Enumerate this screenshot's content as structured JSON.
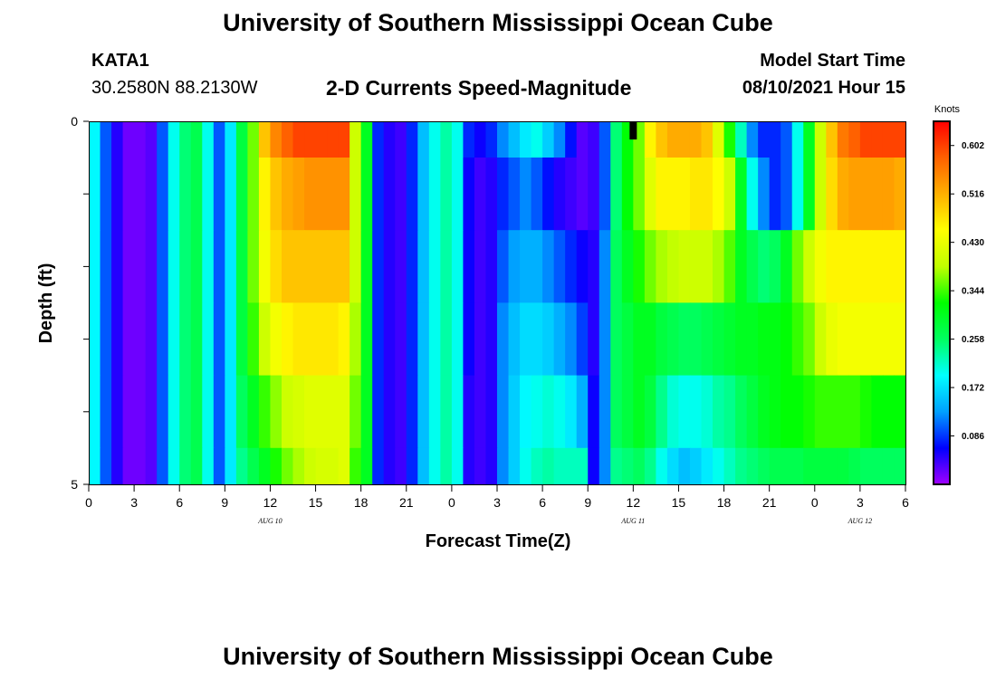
{
  "header": {
    "title": "University of Southern Mississippi Ocean Cube",
    "station_id": "KATA1",
    "coordinates": "30.2580N  88.2130W",
    "subtitle": "2-D Currents Speed-Magnitude",
    "model_label": "Model Start Time",
    "model_time": "08/10/2021 Hour 15"
  },
  "footer": {
    "title": "University of Southern Mississippi Ocean Cube"
  },
  "colors": {
    "colormap": [
      "#a000ff",
      "#0000ff",
      "#00a0ff",
      "#00ffff",
      "#00ff60",
      "#00ff00",
      "#c0ff00",
      "#ffff00",
      "#ffb000",
      "#ff6000",
      "#ff0000"
    ]
  },
  "chart_data": {
    "type": "heatmap",
    "title": "2-D Currents Speed-Magnitude",
    "xlabel": "Forecast Time(Z)",
    "ylabel": "Depth (ft)",
    "x_tick_labels": [
      "0",
      "3",
      "6",
      "9",
      "12",
      "15",
      "18",
      "21",
      "0",
      "3",
      "6",
      "9",
      "12",
      "15",
      "18",
      "21",
      "0",
      "3",
      "6"
    ],
    "date_labels": [
      {
        "text": "AUG 10",
        "hour": 12
      },
      {
        "text": "AUG 11",
        "hour": 36
      },
      {
        "text": "AUG 12",
        "hour": 51
      }
    ],
    "x_range_hours": [
      0,
      54
    ],
    "ylim": [
      0,
      5
    ],
    "y_tick_labels": [
      "0",
      "5"
    ],
    "depth_levels": 5,
    "colorbar": {
      "unit": "Knots",
      "min": 0.0,
      "max": 0.645,
      "tick_values": [
        0.086,
        0.172,
        0.258,
        0.344,
        0.43,
        0.516,
        0.602
      ],
      "tick_labels": [
        "0.086",
        "0.172",
        "0.258",
        "0.344",
        "0.430",
        "0.516",
        "0.602"
      ]
    },
    "no_data_marks": [
      {
        "hour": 36,
        "depth": 0.25
      }
    ],
    "speed_knots_by_depth": [
      [
        0.19,
        0.1,
        0.05,
        0.02,
        0.02,
        0.03,
        0.1,
        0.2,
        0.25,
        0.27,
        0.2,
        0.1,
        0.18,
        0.28,
        0.36,
        0.5,
        0.55,
        0.58,
        0.6,
        0.6,
        0.6,
        0.6,
        0.6,
        0.4,
        0.3,
        0.08,
        0.05,
        0.04,
        0.08,
        0.15,
        0.2,
        0.23,
        0.2,
        0.08,
        0.06,
        0.08,
        0.12,
        0.15,
        0.18,
        0.2,
        0.16,
        0.12,
        0.07,
        0.03,
        0.04,
        0.1,
        0.25,
        0.32,
        0.36,
        0.46,
        0.5,
        0.52,
        0.52,
        0.52,
        0.5,
        0.42,
        0.33,
        0.22,
        0.12,
        0.08,
        0.08,
        0.1,
        0.2,
        0.3,
        0.4,
        0.5,
        0.56,
        0.58,
        0.6,
        0.6,
        0.6,
        0.6
      ],
      [
        0.19,
        0.1,
        0.05,
        0.02,
        0.02,
        0.03,
        0.1,
        0.2,
        0.25,
        0.27,
        0.2,
        0.1,
        0.18,
        0.28,
        0.36,
        0.46,
        0.5,
        0.52,
        0.53,
        0.54,
        0.54,
        0.54,
        0.54,
        0.4,
        0.3,
        0.08,
        0.05,
        0.04,
        0.08,
        0.15,
        0.2,
        0.23,
        0.2,
        0.06,
        0.04,
        0.05,
        0.08,
        0.1,
        0.12,
        0.1,
        0.07,
        0.05,
        0.04,
        0.03,
        0.04,
        0.1,
        0.25,
        0.32,
        0.36,
        0.42,
        0.46,
        0.46,
        0.46,
        0.47,
        0.47,
        0.45,
        0.4,
        0.3,
        0.2,
        0.12,
        0.08,
        0.1,
        0.2,
        0.3,
        0.4,
        0.48,
        0.52,
        0.53,
        0.53,
        0.53,
        0.53,
        0.52
      ],
      [
        0.19,
        0.1,
        0.05,
        0.02,
        0.02,
        0.03,
        0.1,
        0.2,
        0.25,
        0.27,
        0.2,
        0.1,
        0.18,
        0.28,
        0.36,
        0.44,
        0.48,
        0.5,
        0.5,
        0.5,
        0.5,
        0.5,
        0.5,
        0.4,
        0.3,
        0.08,
        0.05,
        0.04,
        0.08,
        0.15,
        0.2,
        0.23,
        0.2,
        0.06,
        0.04,
        0.05,
        0.1,
        0.13,
        0.14,
        0.14,
        0.12,
        0.1,
        0.08,
        0.06,
        0.05,
        0.12,
        0.26,
        0.3,
        0.33,
        0.36,
        0.38,
        0.39,
        0.4,
        0.4,
        0.4,
        0.38,
        0.35,
        0.3,
        0.27,
        0.25,
        0.26,
        0.3,
        0.36,
        0.4,
        0.44,
        0.46,
        0.46,
        0.46,
        0.46,
        0.46,
        0.46,
        0.46
      ],
      [
        0.19,
        0.1,
        0.05,
        0.02,
        0.02,
        0.03,
        0.1,
        0.2,
        0.25,
        0.27,
        0.2,
        0.1,
        0.18,
        0.28,
        0.34,
        0.4,
        0.44,
        0.46,
        0.47,
        0.47,
        0.47,
        0.47,
        0.46,
        0.38,
        0.3,
        0.08,
        0.05,
        0.04,
        0.08,
        0.15,
        0.2,
        0.23,
        0.2,
        0.06,
        0.04,
        0.05,
        0.12,
        0.15,
        0.17,
        0.17,
        0.16,
        0.14,
        0.12,
        0.09,
        0.05,
        0.12,
        0.26,
        0.28,
        0.3,
        0.3,
        0.28,
        0.27,
        0.26,
        0.26,
        0.27,
        0.28,
        0.29,
        0.3,
        0.3,
        0.31,
        0.31,
        0.32,
        0.34,
        0.36,
        0.4,
        0.43,
        0.44,
        0.44,
        0.44,
        0.44,
        0.44,
        0.44
      ],
      [
        0.19,
        0.1,
        0.05,
        0.02,
        0.02,
        0.03,
        0.1,
        0.2,
        0.25,
        0.27,
        0.2,
        0.1,
        0.18,
        0.26,
        0.3,
        0.34,
        0.37,
        0.4,
        0.41,
        0.42,
        0.42,
        0.42,
        0.42,
        0.36,
        0.3,
        0.08,
        0.05,
        0.04,
        0.08,
        0.15,
        0.2,
        0.23,
        0.2,
        0.05,
        0.04,
        0.05,
        0.12,
        0.16,
        0.19,
        0.2,
        0.21,
        0.2,
        0.18,
        0.14,
        0.06,
        0.12,
        0.26,
        0.28,
        0.3,
        0.28,
        0.24,
        0.21,
        0.2,
        0.2,
        0.21,
        0.23,
        0.24,
        0.26,
        0.28,
        0.3,
        0.31,
        0.32,
        0.32,
        0.33,
        0.34,
        0.34,
        0.34,
        0.34,
        0.33,
        0.32,
        0.32,
        0.32
      ],
      [
        0.19,
        0.1,
        0.05,
        0.02,
        0.02,
        0.03,
        0.1,
        0.2,
        0.25,
        0.27,
        0.2,
        0.1,
        0.18,
        0.24,
        0.27,
        0.3,
        0.33,
        0.36,
        0.38,
        0.4,
        0.41,
        0.41,
        0.42,
        0.34,
        0.3,
        0.08,
        0.05,
        0.04,
        0.08,
        0.15,
        0.2,
        0.23,
        0.2,
        0.05,
        0.04,
        0.05,
        0.12,
        0.16,
        0.2,
        0.22,
        0.23,
        0.22,
        0.22,
        0.22,
        0.06,
        0.12,
        0.24,
        0.25,
        0.26,
        0.24,
        0.2,
        0.17,
        0.15,
        0.16,
        0.18,
        0.2,
        0.22,
        0.24,
        0.25,
        0.26,
        0.27,
        0.27,
        0.27,
        0.28,
        0.28,
        0.28,
        0.28,
        0.27,
        0.26,
        0.26,
        0.26,
        0.26
      ]
    ]
  }
}
